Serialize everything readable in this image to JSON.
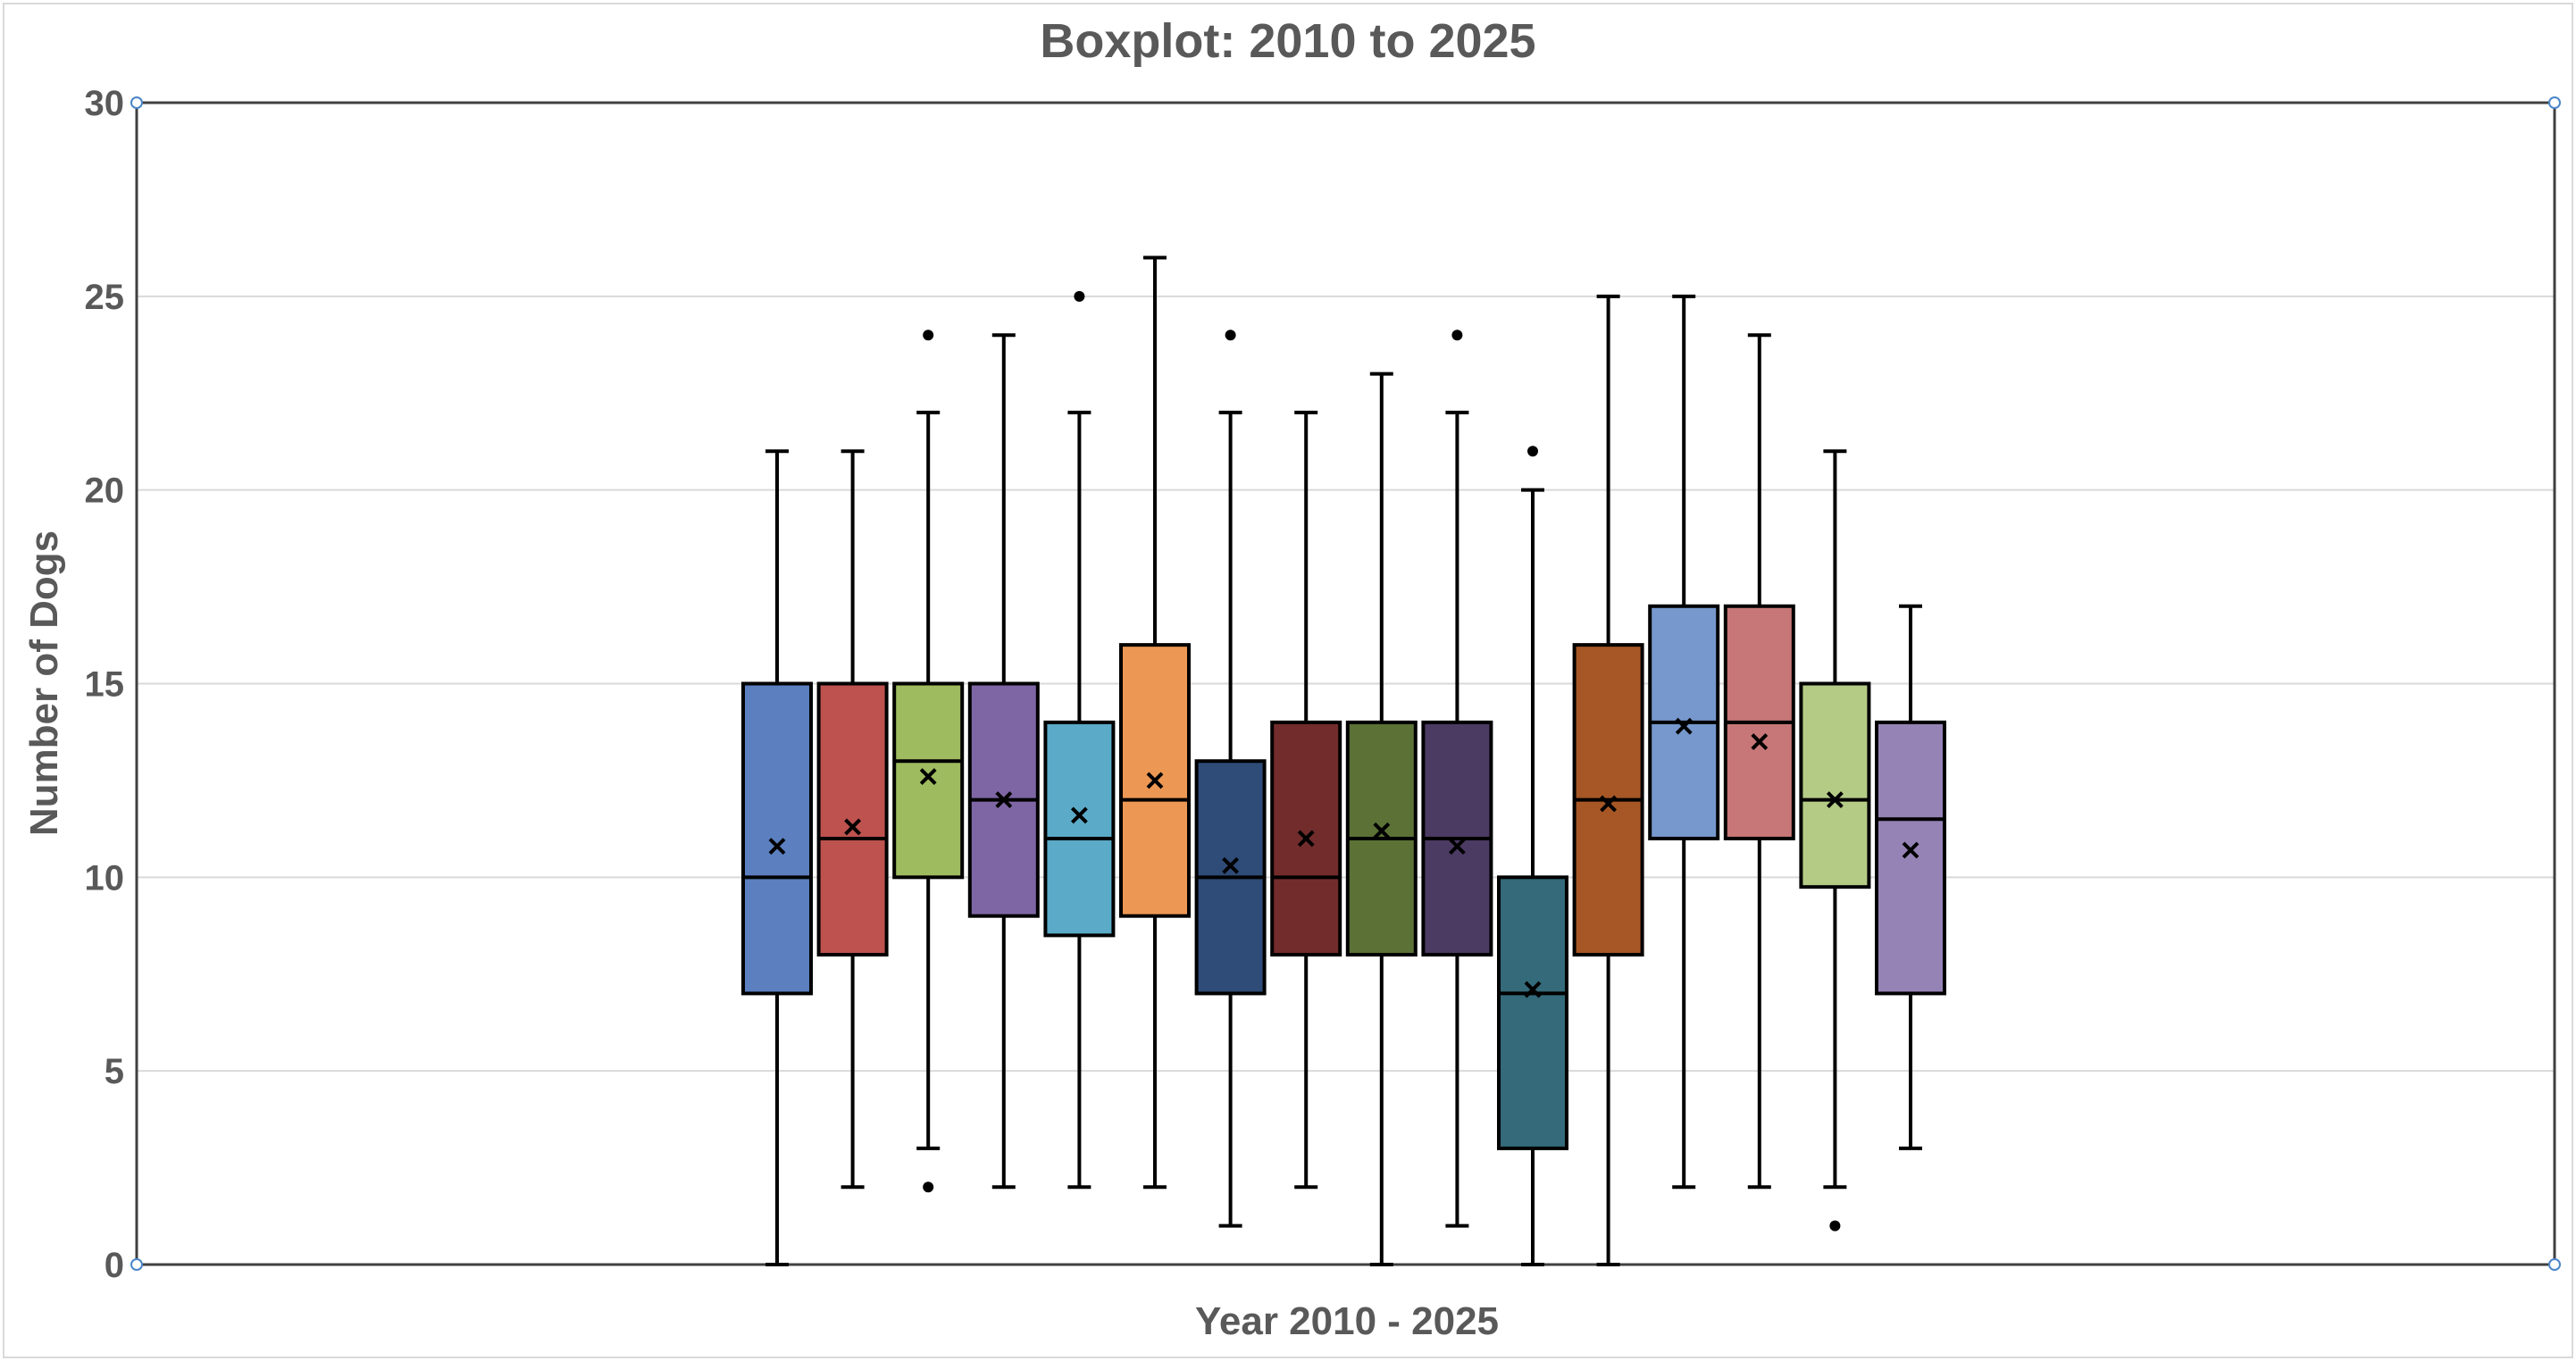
{
  "chart_data": {
    "type": "box",
    "title": "Boxplot: 2010 to 2025",
    "xlabel": "Year 2010 - 2025",
    "ylabel": "Number of Dogs",
    "ylim": [
      0,
      30
    ],
    "yticks": [
      "0",
      "5",
      "10",
      "15",
      "20",
      "25",
      "30"
    ],
    "grid": true,
    "legend": "none",
    "series": [
      {
        "color": "#5B7FBF",
        "min": 0,
        "q1": 7,
        "median": 10,
        "q3": 15,
        "max": 21,
        "mean": 10.8,
        "outliers": []
      },
      {
        "color": "#BD524F",
        "min": 2,
        "q1": 8,
        "median": 11,
        "q3": 15,
        "max": 21,
        "mean": 11.3,
        "outliers": []
      },
      {
        "color": "#9FBB5F",
        "min": 3,
        "q1": 10,
        "median": 13,
        "q3": 15,
        "max": 22,
        "mean": 12.6,
        "outliers": [
          24,
          2
        ]
      },
      {
        "color": "#7E66A4",
        "min": 2,
        "q1": 9,
        "median": 12,
        "q3": 15,
        "max": 24,
        "mean": 12.0,
        "outliers": []
      },
      {
        "color": "#5BAAC8",
        "min": 2,
        "q1": 8.5,
        "median": 11,
        "q3": 14,
        "max": 22,
        "mean": 11.6,
        "outliers": [
          25
        ]
      },
      {
        "color": "#EC9854",
        "min": 2,
        "q1": 9,
        "median": 12,
        "q3": 16,
        "max": 26,
        "mean": 12.5,
        "outliers": []
      },
      {
        "color": "#2F4B77",
        "min": 1,
        "q1": 7,
        "median": 10,
        "q3": 13,
        "max": 22,
        "mean": 10.3,
        "outliers": [
          24
        ]
      },
      {
        "color": "#722C2C",
        "min": 2,
        "q1": 8,
        "median": 10,
        "q3": 14,
        "max": 22,
        "mean": 11.0,
        "outliers": []
      },
      {
        "color": "#5C7136",
        "min": 0,
        "q1": 8,
        "median": 11,
        "q3": 14,
        "max": 23,
        "mean": 11.2,
        "outliers": []
      },
      {
        "color": "#4B3A62",
        "min": 1,
        "q1": 8,
        "median": 11,
        "q3": 14,
        "max": 22,
        "mean": 10.8,
        "outliers": [
          24
        ]
      },
      {
        "color": "#346A79",
        "min": 0,
        "q1": 3,
        "median": 7,
        "q3": 10,
        "max": 20,
        "mean": 7.1,
        "outliers": [
          21
        ]
      },
      {
        "color": "#A75725",
        "min": 0,
        "q1": 8,
        "median": 12,
        "q3": 16,
        "max": 25,
        "mean": 11.9,
        "outliers": []
      },
      {
        "color": "#7698CC",
        "min": 2,
        "q1": 11,
        "median": 14,
        "q3": 17,
        "max": 25,
        "mean": 13.9,
        "outliers": []
      },
      {
        "color": "#C77777",
        "min": 2,
        "q1": 11,
        "median": 14,
        "q3": 17,
        "max": 24,
        "mean": 13.5,
        "outliers": []
      },
      {
        "color": "#B4CB86",
        "min": 2,
        "q1": 9.75,
        "median": 12,
        "q3": 15,
        "max": 21,
        "mean": 12.0,
        "outliers": [
          1
        ]
      },
      {
        "color": "#9583B5",
        "min": 3,
        "q1": 7,
        "median": 11.5,
        "q3": 14,
        "max": 17,
        "mean": 10.7,
        "outliers": []
      }
    ]
  }
}
